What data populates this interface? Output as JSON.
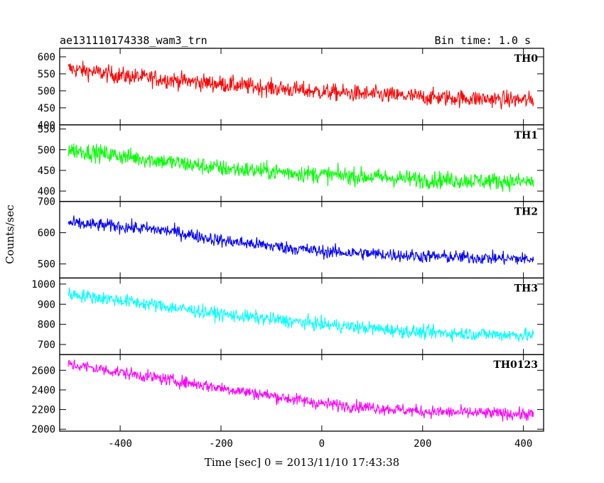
{
  "chart_data": {
    "type": "line",
    "title_left": "ae131110174338_wam3_trn",
    "title_right": "Bin time: 1.0 s",
    "xlabel": "Time [sec] 0 = 2013/11/10 17:43:38",
    "ylabel": "Counts/sec",
    "xlim": [
      -520,
      440
    ],
    "x_ticks": [
      -400,
      -200,
      0,
      200,
      400
    ],
    "x_start": -503,
    "x_end": 420,
    "x_step": 1,
    "grid": false,
    "panels": [
      {
        "name": "TH0",
        "color": "#ff0000",
        "ylim": [
          400,
          625
        ],
        "y_ticks": [
          400,
          450,
          500,
          550,
          600
        ],
        "trend": [
          [
            -500,
            565
          ],
          [
            -400,
            545
          ],
          [
            -200,
            520
          ],
          [
            0,
            497
          ],
          [
            200,
            482
          ],
          [
            420,
            472
          ]
        ],
        "noise": 30
      },
      {
        "name": "TH1",
        "color": "#00ff00",
        "ylim": [
          375,
          560
        ],
        "y_ticks": [
          400,
          450,
          500,
          550
        ],
        "trend": [
          [
            -500,
            500
          ],
          [
            -400,
            485
          ],
          [
            -200,
            455
          ],
          [
            0,
            440
          ],
          [
            200,
            428
          ],
          [
            420,
            422
          ]
        ],
        "noise": 25
      },
      {
        "name": "TH2",
        "color": "#0000ff",
        "ylim": [
          455,
          700
        ],
        "y_ticks": [
          500,
          600,
          700
        ],
        "trend": [
          [
            -500,
            630
          ],
          [
            -400,
            620
          ],
          [
            -300,
            605
          ],
          [
            -200,
            575
          ],
          [
            0,
            540
          ],
          [
            200,
            525
          ],
          [
            420,
            515
          ]
        ],
        "noise": 25
      },
      {
        "name": "TH3",
        "color": "#00ffff",
        "ylim": [
          650,
          1030
        ],
        "y_ticks": [
          700,
          800,
          900,
          1000
        ],
        "trend": [
          [
            -500,
            950
          ],
          [
            -400,
            920
          ],
          [
            -200,
            850
          ],
          [
            0,
            800
          ],
          [
            200,
            760
          ],
          [
            420,
            745
          ]
        ],
        "noise": 40
      },
      {
        "name": "TH0123",
        "color": "#ff00ff",
        "ylim": [
          1980,
          2760
        ],
        "y_ticks": [
          2000,
          2200,
          2400,
          2600
        ],
        "trend": [
          [
            -500,
            2660
          ],
          [
            -400,
            2580
          ],
          [
            -200,
            2420
          ],
          [
            0,
            2260
          ],
          [
            200,
            2180
          ],
          [
            420,
            2150
          ]
        ],
        "noise": 75
      }
    ]
  }
}
